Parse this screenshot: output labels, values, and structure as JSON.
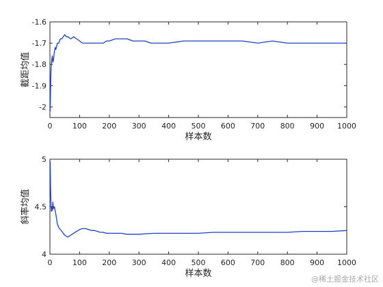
{
  "chart_data": [
    {
      "type": "line",
      "xlabel": "样本数",
      "ylabel": "截距均值",
      "xlim": [
        0,
        1000
      ],
      "ylim": [
        -2.05,
        -1.6
      ],
      "xticks": [
        0,
        100,
        200,
        300,
        400,
        500,
        600,
        700,
        800,
        900,
        1000
      ],
      "yticks": [
        -1.6,
        -1.7,
        -1.8,
        -1.9,
        -2
      ],
      "ytick_labels": [
        "-1.6",
        "-1.7",
        "-1.8",
        "-1.9",
        "-2"
      ],
      "grid": false,
      "line_color": "#1f3fbf",
      "series": [
        {
          "x": [
            1,
            2,
            3,
            4,
            5,
            6,
            8,
            10,
            12,
            15,
            18,
            20,
            25,
            30,
            35,
            40,
            45,
            50,
            55,
            60,
            70,
            80,
            90,
            100,
            110,
            120,
            130,
            140,
            150,
            160,
            170,
            180,
            190,
            200,
            220,
            240,
            250,
            260,
            280,
            300,
            320,
            340,
            360,
            380,
            400,
            450,
            500,
            550,
            600,
            650,
            700,
            750,
            800,
            850,
            900,
            950,
            1000
          ],
          "y": [
            -2.02,
            -1.92,
            -1.86,
            -1.82,
            -1.8,
            -1.78,
            -1.76,
            -1.79,
            -1.78,
            -1.74,
            -1.72,
            -1.73,
            -1.7,
            -1.7,
            -1.68,
            -1.68,
            -1.67,
            -1.66,
            -1.67,
            -1.67,
            -1.68,
            -1.67,
            -1.68,
            -1.69,
            -1.7,
            -1.7,
            -1.7,
            -1.7,
            -1.7,
            -1.7,
            -1.7,
            -1.7,
            -1.69,
            -1.69,
            -1.68,
            -1.68,
            -1.68,
            -1.68,
            -1.69,
            -1.69,
            -1.69,
            -1.7,
            -1.7,
            -1.7,
            -1.7,
            -1.69,
            -1.69,
            -1.69,
            -1.69,
            -1.69,
            -1.7,
            -1.69,
            -1.7,
            -1.7,
            -1.7,
            -1.7,
            -1.7
          ]
        }
      ]
    },
    {
      "type": "line",
      "xlabel": "样本数",
      "ylabel": "斜率均值",
      "xlim": [
        0,
        1000
      ],
      "ylim": [
        4,
        5
      ],
      "xticks": [
        0,
        100,
        200,
        300,
        400,
        500,
        600,
        700,
        800,
        900,
        1000
      ],
      "yticks": [
        5,
        4.5,
        4
      ],
      "ytick_labels": [
        "5",
        "4.5",
        "4"
      ],
      "grid": false,
      "line_color": "#1f3fbf",
      "series": [
        {
          "x": [
            1,
            2,
            3,
            4,
            5,
            6,
            8,
            10,
            12,
            15,
            18,
            20,
            25,
            30,
            40,
            50,
            55,
            60,
            70,
            80,
            90,
            100,
            110,
            120,
            130,
            140,
            150,
            160,
            170,
            180,
            190,
            200,
            220,
            240,
            260,
            280,
            300,
            350,
            400,
            450,
            500,
            550,
            600,
            650,
            700,
            750,
            800,
            850,
            900,
            950,
            1000
          ],
          "y": [
            4.98,
            4.7,
            4.6,
            4.5,
            4.45,
            4.5,
            4.46,
            4.55,
            4.48,
            4.5,
            4.45,
            4.42,
            4.32,
            4.28,
            4.24,
            4.2,
            4.19,
            4.18,
            4.2,
            4.22,
            4.24,
            4.26,
            4.27,
            4.27,
            4.26,
            4.25,
            4.25,
            4.24,
            4.23,
            4.23,
            4.22,
            4.22,
            4.22,
            4.22,
            4.21,
            4.21,
            4.21,
            4.22,
            4.22,
            4.22,
            4.22,
            4.23,
            4.23,
            4.23,
            4.23,
            4.23,
            4.23,
            4.24,
            4.24,
            4.24,
            4.25
          ]
        }
      ]
    }
  ],
  "watermark": "@稀土掘金技术社区"
}
